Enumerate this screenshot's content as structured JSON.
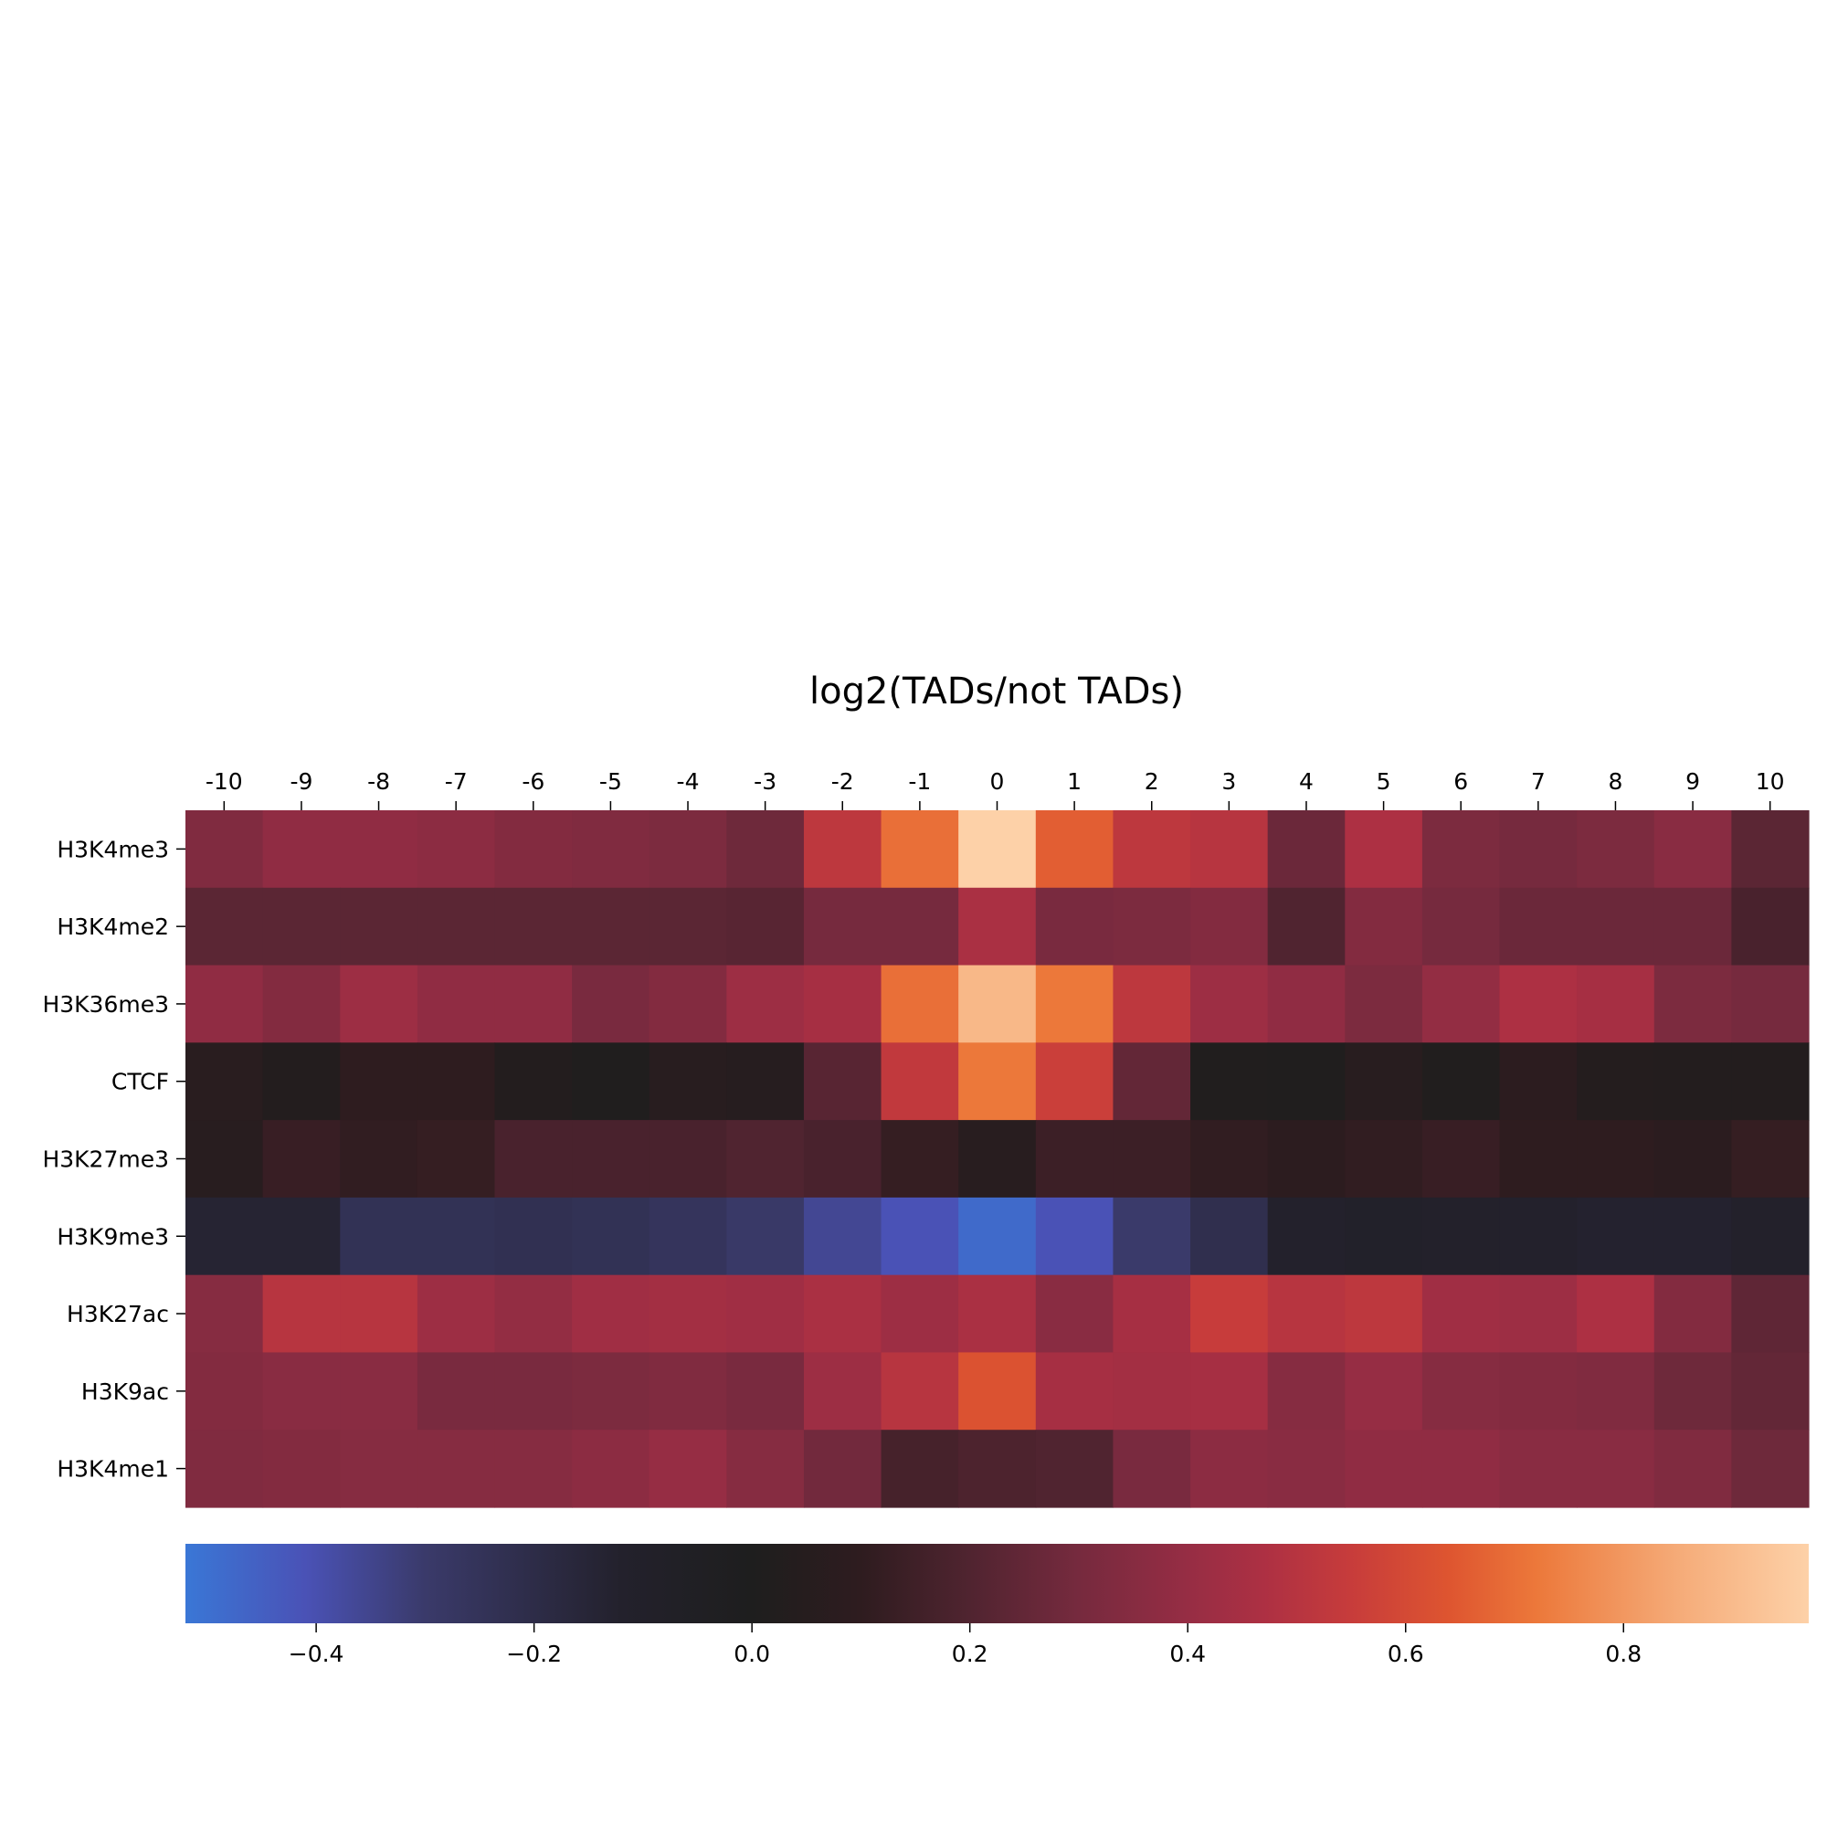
{
  "chart_data": {
    "type": "heatmap",
    "title": "log2(TADs/not TADs)",
    "x": [
      "-10",
      "-9",
      "-8",
      "-7",
      "-6",
      "-5",
      "-4",
      "-3",
      "-2",
      "-1",
      "0",
      "1",
      "2",
      "3",
      "4",
      "5",
      "6",
      "7",
      "8",
      "9",
      "10"
    ],
    "y": [
      "H3K4me3",
      "H3K4me2",
      "H3K36me3",
      "CTCF",
      "H3K27me3",
      "H3K9me3",
      "H3K27ac",
      "H3K9ac",
      "H3K4me1"
    ],
    "values": [
      [
        0.33,
        0.38,
        0.38,
        0.37,
        0.34,
        0.33,
        0.32,
        0.28,
        0.52,
        0.7,
        0.97,
        0.66,
        0.52,
        0.5,
        0.27,
        0.47,
        0.32,
        0.3,
        0.32,
        0.36,
        0.23
      ],
      [
        0.23,
        0.23,
        0.23,
        0.23,
        0.23,
        0.23,
        0.23,
        0.22,
        0.3,
        0.3,
        0.46,
        0.31,
        0.32,
        0.34,
        0.2,
        0.34,
        0.3,
        0.27,
        0.27,
        0.27,
        0.18
      ],
      [
        0.38,
        0.34,
        0.42,
        0.38,
        0.38,
        0.31,
        0.34,
        0.42,
        0.45,
        0.7,
        0.89,
        0.72,
        0.52,
        0.42,
        0.38,
        0.32,
        0.39,
        0.47,
        0.45,
        0.32,
        0.3
      ],
      [
        0.07,
        0.03,
        0.1,
        0.1,
        0.03,
        0.01,
        0.06,
        0.05,
        0.22,
        0.53,
        0.72,
        0.56,
        0.25,
        0.02,
        0.01,
        0.06,
        0.02,
        0.09,
        0.04,
        0.03,
        0.03
      ],
      [
        0.06,
        0.13,
        0.11,
        0.12,
        0.18,
        0.18,
        0.18,
        0.2,
        0.18,
        0.12,
        0.06,
        0.14,
        0.14,
        0.11,
        0.09,
        0.11,
        0.13,
        0.1,
        0.1,
        0.08,
        0.12
      ],
      [
        -0.14,
        -0.14,
        -0.24,
        -0.24,
        -0.23,
        -0.24,
        -0.26,
        -0.29,
        -0.36,
        -0.41,
        -0.48,
        -0.41,
        -0.3,
        -0.22,
        -0.12,
        -0.1,
        -0.11,
        -0.12,
        -0.13,
        -0.13,
        -0.11
      ],
      [
        0.35,
        0.5,
        0.5,
        0.42,
        0.39,
        0.43,
        0.44,
        0.43,
        0.46,
        0.42,
        0.46,
        0.36,
        0.45,
        0.55,
        0.5,
        0.52,
        0.43,
        0.42,
        0.47,
        0.34,
        0.24
      ],
      [
        0.34,
        0.36,
        0.36,
        0.31,
        0.31,
        0.32,
        0.33,
        0.31,
        0.42,
        0.5,
        0.63,
        0.45,
        0.44,
        0.45,
        0.35,
        0.4,
        0.35,
        0.34,
        0.33,
        0.28,
        0.25
      ],
      [
        0.33,
        0.34,
        0.35,
        0.35,
        0.35,
        0.37,
        0.4,
        0.35,
        0.29,
        0.17,
        0.19,
        0.2,
        0.31,
        0.37,
        0.36,
        0.38,
        0.38,
        0.36,
        0.36,
        0.33,
        0.28
      ]
    ],
    "colorbar": {
      "range": [
        -0.52,
        0.97
      ],
      "ticks": [
        "−0.4",
        "−0.2",
        "0.0",
        "0.2",
        "0.4",
        "0.6",
        "0.8"
      ],
      "tick_values": [
        -0.4,
        -0.2,
        0.0,
        0.2,
        0.4,
        0.6,
        0.8
      ],
      "orientation": "horizontal",
      "placement": "bottom",
      "colors": [
        {
          "v": -0.52,
          "c": "#3a77d6"
        },
        {
          "v": -0.41,
          "c": "#4a52b6"
        },
        {
          "v": -0.3,
          "c": "#3a3a6a"
        },
        {
          "v": -0.12,
          "c": "#23212c"
        },
        {
          "v": 0.0,
          "c": "#1e1e1e"
        },
        {
          "v": 0.1,
          "c": "#2e1c1f"
        },
        {
          "v": 0.2,
          "c": "#502430"
        },
        {
          "v": 0.3,
          "c": "#762a3e"
        },
        {
          "v": 0.4,
          "c": "#962d44"
        },
        {
          "v": 0.47,
          "c": "#ad3043"
        },
        {
          "v": 0.55,
          "c": "#c73c3b"
        },
        {
          "v": 0.64,
          "c": "#de5530"
        },
        {
          "v": 0.72,
          "c": "#ec783a"
        },
        {
          "v": 0.85,
          "c": "#f5ab78"
        },
        {
          "v": 0.97,
          "c": "#fdd1a8"
        }
      ]
    },
    "x_axis_position": "top",
    "grid": false
  }
}
